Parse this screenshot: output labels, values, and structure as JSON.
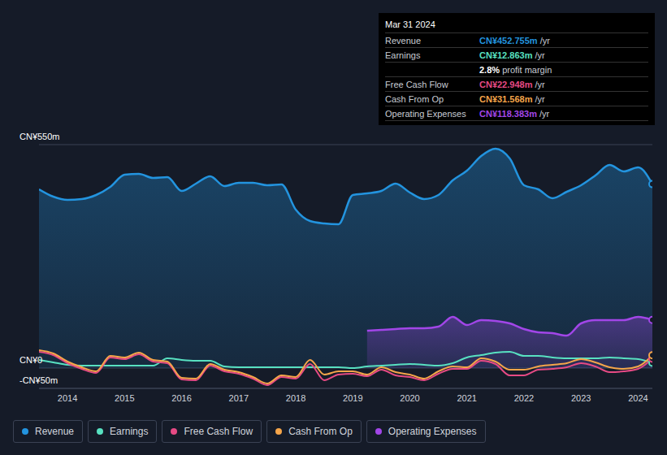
{
  "chart_data": {
    "type": "line",
    "x": [
      2013.5,
      2013.75,
      2014,
      2014.25,
      2014.5,
      2014.75,
      2015,
      2015.25,
      2015.5,
      2015.75,
      2016,
      2016.25,
      2016.5,
      2016.75,
      2017,
      2017.25,
      2017.5,
      2017.75,
      2018,
      2018.25,
      2018.5,
      2018.75,
      2019,
      2019.25,
      2019.5,
      2019.75,
      2020,
      2020.25,
      2020.5,
      2020.75,
      2021,
      2021.25,
      2021.5,
      2021.75,
      2022,
      2022.25,
      2022.5,
      2022.75,
      2023,
      2023.25,
      2023.5,
      2023.75,
      2024,
      2024.25
    ],
    "xlim": [
      2013.5,
      2024.25
    ],
    "xticks": [
      2014,
      2015,
      2016,
      2017,
      2018,
      2019,
      2020,
      2021,
      2022,
      2023,
      2024
    ],
    "ylim": [
      -50,
      550
    ],
    "yticks": [
      {
        "value": -50,
        "label": "-CN¥50m"
      },
      {
        "value": 0,
        "label": "CN¥0"
      },
      {
        "value": 550,
        "label": "CN¥550m"
      }
    ],
    "grid": true,
    "legend": "bottom-left",
    "series": [
      {
        "name": "Revenue",
        "type": "area",
        "color": "#2394df",
        "values": [
          440,
          422,
          414,
          416,
          426,
          446,
          476,
          478,
          468,
          470,
          436,
          454,
          472,
          448,
          456,
          456,
          450,
          452,
          390,
          362,
          356,
          354,
          426,
          430,
          436,
          454,
          432,
          416,
          426,
          462,
          486,
          522,
          540,
          516,
          450,
          440,
          418,
          434,
          450,
          474,
          500,
          484,
          494,
          452.755
        ]
      },
      {
        "name": "Earnings",
        "type": "line",
        "color": "#58e1c1",
        "values": [
          20,
          14,
          8,
          6,
          6,
          6,
          6,
          6,
          6,
          24,
          20,
          18,
          18,
          4,
          2,
          2,
          2,
          2,
          2,
          2,
          2,
          2,
          0,
          4,
          6,
          8,
          10,
          8,
          6,
          12,
          26,
          32,
          38,
          40,
          30,
          30,
          26,
          24,
          24,
          24,
          26,
          24,
          22,
          12.863
        ]
      },
      {
        "name": "Free Cash Flow",
        "type": "line",
        "color": "#e64a84",
        "values": [
          40,
          32,
          12,
          -2,
          -12,
          26,
          22,
          34,
          16,
          12,
          -28,
          -30,
          6,
          -8,
          -14,
          -26,
          -42,
          -22,
          -26,
          10,
          -30,
          -16,
          -14,
          -20,
          -4,
          -18,
          -22,
          -30,
          -14,
          -2,
          -2,
          18,
          10,
          -18,
          -18,
          -4,
          -2,
          2,
          12,
          4,
          -10,
          -8,
          -2,
          22.948
        ]
      },
      {
        "name": "Cash From Op",
        "type": "line",
        "color": "#f5a54a",
        "values": [
          44,
          36,
          16,
          2,
          -8,
          30,
          26,
          38,
          20,
          16,
          -24,
          -26,
          10,
          -4,
          -10,
          -22,
          -38,
          -18,
          -22,
          20,
          -16,
          -8,
          -8,
          -16,
          2,
          -10,
          -16,
          -26,
          -8,
          4,
          2,
          24,
          16,
          -4,
          -4,
          4,
          8,
          12,
          22,
          14,
          2,
          -2,
          4,
          31.568
        ]
      },
      {
        "name": "Operating Expenses",
        "type": "area",
        "color": "#a246e8",
        "values": [
          null,
          null,
          null,
          null,
          null,
          null,
          null,
          null,
          null,
          null,
          null,
          null,
          null,
          null,
          null,
          null,
          null,
          null,
          null,
          null,
          null,
          null,
          null,
          92,
          94,
          96,
          98,
          98,
          102,
          126,
          106,
          118,
          116,
          110,
          96,
          88,
          86,
          80,
          110,
          118,
          118,
          118,
          126,
          118.383
        ]
      }
    ],
    "tooltip": {
      "title": "Mar 31 2024",
      "rows": [
        {
          "label": "Revenue",
          "value": "CN¥452.755m",
          "unit": "/yr"
        },
        {
          "label": "Earnings",
          "value": "CN¥12.863m",
          "unit": "/yr"
        },
        {
          "label": null,
          "value": "2.8%",
          "unit": "profit margin"
        },
        {
          "label": "Free Cash Flow",
          "value": "CN¥22.948m",
          "unit": "/yr"
        },
        {
          "label": "Cash From Op",
          "value": "CN¥31.568m",
          "unit": "/yr"
        },
        {
          "label": "Operating Expenses",
          "value": "CN¥118.383m",
          "unit": "/yr"
        }
      ]
    }
  }
}
